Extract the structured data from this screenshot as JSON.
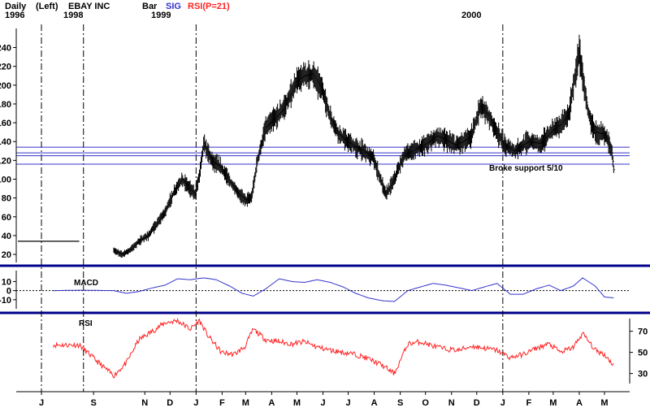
{
  "header": {
    "period": "Daily",
    "year_1996": "1996",
    "left_tag": "(Left)",
    "year_1998": "1998",
    "ticker": "EBAY INC",
    "year_1999": "1999",
    "bar_tag": "Bar",
    "sig_tag": "SIG",
    "rsi_tag": "RSI(P=21)",
    "year_2000": "2000"
  },
  "colors": {
    "price": "#000000",
    "macd": "#3333cc",
    "rsi": "#ff2222",
    "support": "#3333cc",
    "separator": "#00008b"
  },
  "chart_data": [
    {
      "type": "line",
      "panel": "price",
      "title": "EBAY INC",
      "y_ticks": [
        20,
        40,
        60,
        80,
        100,
        120,
        140,
        160,
        180,
        200,
        220,
        240
      ],
      "ylim": [
        14,
        256
      ],
      "support_levels": [
        116,
        125,
        128,
        134
      ],
      "annotation": "Broke support 5/10",
      "series": [
        {
          "x": [
            "1998-07-15",
            "1998-08-15",
            "1998-09-25",
            "1998-10-05",
            "1998-10-15",
            "1998-10-25",
            "1998-11-05",
            "1998-11-15",
            "1998-11-25",
            "1998-12-05",
            "1998-12-15",
            "1998-12-25",
            "1998-12-31",
            "1999-01-05",
            "1999-01-10",
            "1999-01-20",
            "1999-01-31",
            "1999-02-10",
            "1999-02-20",
            "1999-03-01",
            "1999-03-08",
            "1999-03-15",
            "1999-03-25",
            "1999-04-05",
            "1999-04-15",
            "1999-04-25",
            "1999-05-01",
            "1999-05-10",
            "1999-05-20",
            "1999-05-31",
            "1999-06-10",
            "1999-06-20",
            "1999-06-30",
            "1999-07-10",
            "1999-07-20",
            "1999-07-31",
            "1999-08-10",
            "1999-08-15",
            "1999-08-25",
            "1999-09-05",
            "1999-09-15",
            "1999-09-25",
            "1999-10-05",
            "1999-10-15",
            "1999-10-25",
            "1999-11-05",
            "1999-11-15",
            "1999-11-25",
            "1999-12-05",
            "1999-12-15",
            "1999-12-25",
            "2000-01-03",
            "2000-01-15",
            "2000-01-31",
            "2000-02-15",
            "2000-02-29",
            "2000-03-10",
            "2000-03-20",
            "2000-03-25",
            "2000-04-01",
            "2000-04-05",
            "2000-04-12",
            "2000-04-20",
            "2000-04-30",
            "2000-05-05",
            "2000-05-10",
            "2000-05-12"
          ],
          "y": [
            34,
            34,
            24,
            20,
            25,
            34,
            40,
            52,
            65,
            85,
            100,
            90,
            84,
            105,
            138,
            120,
            112,
            98,
            85,
            78,
            80,
            120,
            155,
            165,
            175,
            192,
            205,
            210,
            212,
            196,
            165,
            148,
            140,
            134,
            130,
            122,
            96,
            84,
            100,
            125,
            130,
            134,
            140,
            146,
            142,
            136,
            140,
            146,
            178,
            168,
            150,
            136,
            130,
            140,
            138,
            152,
            158,
            170,
            200,
            235,
            210,
            170,
            150,
            148,
            142,
            128,
            110
          ]
        }
      ]
    },
    {
      "type": "line",
      "panel": "macd",
      "title": "MACD",
      "y_ticks": [
        10,
        0,
        -10
      ],
      "ylim": [
        -20,
        22
      ],
      "series": [
        {
          "name": "MACD",
          "x": [
            "1998-07-15",
            "1998-08-15",
            "1998-09-25",
            "1998-10-10",
            "1998-10-25",
            "1998-11-10",
            "1998-11-25",
            "1998-12-10",
            "1998-12-25",
            "1999-01-10",
            "1999-01-25",
            "1999-02-10",
            "1999-02-25",
            "1999-03-10",
            "1999-03-25",
            "1999-04-10",
            "1999-04-25",
            "1999-05-10",
            "1999-05-25",
            "1999-06-10",
            "1999-06-25",
            "1999-07-10",
            "1999-07-25",
            "1999-08-10",
            "1999-08-25",
            "1999-09-10",
            "1999-09-25",
            "1999-10-10",
            "1999-10-25",
            "1999-11-10",
            "1999-11-25",
            "1999-12-10",
            "1999-12-25",
            "2000-01-10",
            "2000-01-25",
            "2000-02-10",
            "2000-02-25",
            "2000-03-10",
            "2000-03-25",
            "2000-04-05",
            "2000-04-20",
            "2000-05-01",
            "2000-05-12"
          ],
          "y": [
            0,
            0.5,
            0,
            -3,
            -1,
            3,
            6,
            13,
            12,
            14,
            12,
            5,
            -3,
            -6,
            2,
            13,
            10,
            9,
            12,
            9,
            4,
            -3,
            -8,
            -11,
            -12,
            0,
            4,
            8,
            6,
            3,
            0,
            4,
            8,
            -4,
            -4,
            2,
            6,
            0,
            5,
            14,
            5,
            -7,
            -8
          ]
        }
      ]
    },
    {
      "type": "line",
      "panel": "rsi",
      "title": "RSI",
      "y_ticks": [
        70,
        50,
        30
      ],
      "ylim": [
        22,
        82
      ],
      "series": [
        {
          "name": "RSI",
          "x": [
            "1998-07-15",
            "1998-08-15",
            "1998-09-10",
            "1998-09-25",
            "1998-10-10",
            "1998-10-25",
            "1998-11-10",
            "1998-11-25",
            "1998-12-10",
            "1998-12-25",
            "1999-01-05",
            "1999-01-15",
            "1999-01-31",
            "1999-02-15",
            "1999-02-28",
            "1999-03-10",
            "1999-03-25",
            "1999-04-10",
            "1999-04-25",
            "1999-05-10",
            "1999-05-25",
            "1999-06-10",
            "1999-06-25",
            "1999-07-10",
            "1999-07-25",
            "1999-08-10",
            "1999-08-25",
            "1999-09-10",
            "1999-09-25",
            "1999-10-10",
            "1999-10-25",
            "1999-11-10",
            "1999-11-25",
            "1999-12-10",
            "1999-12-25",
            "2000-01-10",
            "2000-01-25",
            "2000-02-10",
            "2000-02-25",
            "2000-03-10",
            "2000-03-25",
            "2000-04-05",
            "2000-04-20",
            "2000-05-01",
            "2000-05-12"
          ],
          "y": [
            57,
            57,
            38,
            28,
            40,
            62,
            70,
            78,
            80,
            72,
            80,
            66,
            50,
            48,
            55,
            72,
            62,
            60,
            58,
            60,
            55,
            52,
            50,
            48,
            44,
            38,
            30,
            58,
            60,
            56,
            53,
            52,
            56,
            54,
            52,
            45,
            48,
            54,
            58,
            50,
            55,
            68,
            52,
            48,
            38
          ]
        }
      ]
    }
  ],
  "x_axis": {
    "labels": [
      "J",
      "S",
      "N",
      "D",
      "J",
      "F",
      "M",
      "A",
      "M",
      "J",
      "J",
      "A",
      "S",
      "O",
      "N",
      "D",
      "J",
      "F",
      "M",
      "A",
      "M"
    ],
    "dates": [
      "1998-07-01",
      "1998-09-01",
      "1998-11-01",
      "1998-12-01",
      "1999-01-01",
      "1999-02-01",
      "1999-03-01",
      "1999-04-01",
      "1999-05-01",
      "1999-06-01",
      "1999-07-01",
      "1999-08-01",
      "1999-09-01",
      "1999-10-01",
      "1999-11-01",
      "1999-12-01",
      "2000-01-01",
      "2000-02-01",
      "2000-03-01",
      "2000-04-01",
      "2000-05-01"
    ]
  },
  "dividers": {
    "left_segment_end": "1998-08-20",
    "year_markers": [
      "1999-01-01",
      "2000-01-01"
    ]
  }
}
